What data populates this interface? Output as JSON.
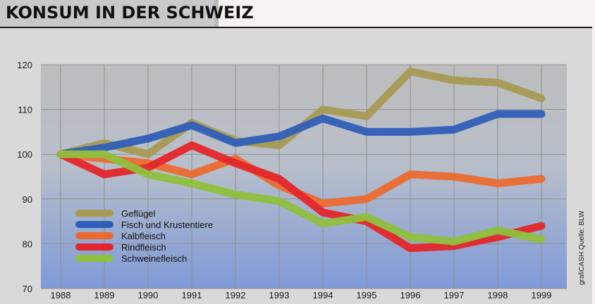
{
  "title": "KONSUM IN DER SCHWEIZ",
  "source_note": "grafiCASH Quelle: BLW",
  "chart_data": {
    "type": "line",
    "title": "KONSUM IN DER SCHWEIZ",
    "xlabel": "",
    "ylabel": "",
    "x": [
      "1988",
      "1989",
      "1990",
      "1991",
      "1992",
      "1993",
      "1994",
      "1995",
      "1996",
      "1997",
      "1998",
      "1999"
    ],
    "ylim": [
      70,
      120
    ],
    "yticks": [
      70,
      80,
      90,
      100,
      110,
      120
    ],
    "grid": true,
    "legend_position": "bottom-left",
    "series": [
      {
        "name": "Geflügel",
        "color": "#a89a55",
        "values": [
          100,
          102.5,
          100,
          107,
          103,
          102,
          110,
          108.5,
          118.5,
          116.5,
          116,
          112.5
        ]
      },
      {
        "name": "Fisch und Krustentiere",
        "color": "#2f5fb8",
        "values": [
          100,
          101.5,
          103.5,
          106.5,
          102.5,
          104,
          108,
          105,
          105,
          105.5,
          109,
          109
        ]
      },
      {
        "name": "Kalbfleisch",
        "color": "#ec6a2f",
        "values": [
          100,
          99,
          98,
          95.5,
          99,
          93,
          89,
          90,
          95.5,
          95,
          93.5,
          94.5
        ]
      },
      {
        "name": "Rindfleisch",
        "color": "#e4262a",
        "values": [
          100,
          95.5,
          97,
          102,
          98,
          94.5,
          87,
          85,
          79,
          79.5,
          81.5,
          84
        ]
      },
      {
        "name": "Schweinefleisch",
        "color": "#8fc03d",
        "values": [
          100,
          100,
          95.5,
          93.5,
          91,
          89.5,
          84.5,
          86,
          81.5,
          80.5,
          83,
          81
        ]
      }
    ]
  }
}
